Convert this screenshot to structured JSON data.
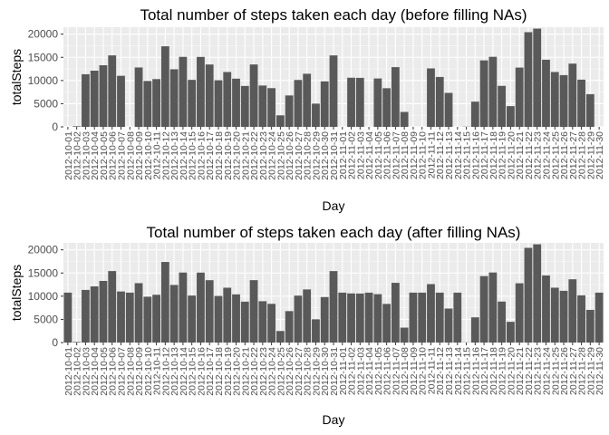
{
  "chart_data": [
    {
      "type": "bar",
      "title": "Total number of steps taken each day (before filling NAs)",
      "xlabel": "Day",
      "ylabel": "totalSteps",
      "ylim": [
        0,
        21500
      ],
      "yticks": [
        0,
        5000,
        10000,
        15000,
        20000
      ],
      "ytick_labels": [
        "0",
        "5000",
        "10000",
        "15000",
        "20000"
      ],
      "grid": true,
      "legend": "none",
      "bar_color": "#595959",
      "panel_color": "#ebebeb",
      "categories": [
        "2012-10-01",
        "2012-10-02",
        "2012-10-03",
        "2012-10-04",
        "2012-10-05",
        "2012-10-06",
        "2012-10-07",
        "2012-10-08",
        "2012-10-09",
        "2012-10-10",
        "2012-10-11",
        "2012-10-12",
        "2012-10-13",
        "2012-10-14",
        "2012-10-15",
        "2012-10-16",
        "2012-10-17",
        "2012-10-18",
        "2012-10-19",
        "2012-10-20",
        "2012-10-21",
        "2012-10-22",
        "2012-10-23",
        "2012-10-24",
        "2012-10-25",
        "2012-10-26",
        "2012-10-27",
        "2012-10-28",
        "2012-10-29",
        "2012-10-30",
        "2012-10-31",
        "2012-11-01",
        "2012-11-02",
        "2012-11-03",
        "2012-11-04",
        "2012-11-05",
        "2012-11-06",
        "2012-11-07",
        "2012-11-08",
        "2012-11-09",
        "2012-11-10",
        "2012-11-11",
        "2012-11-12",
        "2012-11-13",
        "2012-11-14",
        "2012-11-15",
        "2012-11-16",
        "2012-11-17",
        "2012-11-18",
        "2012-11-19",
        "2012-11-20",
        "2012-11-21",
        "2012-11-22",
        "2012-11-23",
        "2012-11-24",
        "2012-11-25",
        "2012-11-26",
        "2012-11-27",
        "2012-11-28",
        "2012-11-29",
        "2012-11-30"
      ],
      "values": [
        0,
        126,
        11352,
        12116,
        13294,
        15420,
        11015,
        0,
        12811,
        9900,
        10304,
        17382,
        12426,
        15098,
        10139,
        15084,
        13452,
        10056,
        11829,
        10395,
        8821,
        13460,
        8918,
        8355,
        2492,
        6778,
        10119,
        11458,
        5018,
        9819,
        15414,
        0,
        10600,
        10571,
        0,
        10439,
        8334,
        12883,
        3219,
        0,
        0,
        12608,
        10765,
        7336,
        0,
        41,
        5441,
        14339,
        15110,
        8841,
        4472,
        12787,
        20427,
        21194,
        14478,
        11834,
        11162,
        13646,
        10183,
        7047,
        0
      ]
    },
    {
      "type": "bar",
      "title": "Total number of steps taken each day (after filling NAs)",
      "xlabel": "Day",
      "ylabel": "totalSteps",
      "ylim": [
        0,
        21500
      ],
      "yticks": [
        0,
        5000,
        10000,
        15000,
        20000
      ],
      "ytick_labels": [
        "0",
        "5000",
        "10000",
        "15000",
        "20000"
      ],
      "grid": true,
      "legend": "none",
      "bar_color": "#595959",
      "panel_color": "#ebebeb",
      "categories": [
        "2012-10-01",
        "2012-10-02",
        "2012-10-03",
        "2012-10-04",
        "2012-10-05",
        "2012-10-06",
        "2012-10-07",
        "2012-10-08",
        "2012-10-09",
        "2012-10-10",
        "2012-10-11",
        "2012-10-12",
        "2012-10-13",
        "2012-10-14",
        "2012-10-15",
        "2012-10-16",
        "2012-10-17",
        "2012-10-18",
        "2012-10-19",
        "2012-10-20",
        "2012-10-21",
        "2012-10-22",
        "2012-10-23",
        "2012-10-24",
        "2012-10-25",
        "2012-10-26",
        "2012-10-27",
        "2012-10-28",
        "2012-10-29",
        "2012-10-30",
        "2012-10-31",
        "2012-11-01",
        "2012-11-02",
        "2012-11-03",
        "2012-11-04",
        "2012-11-05",
        "2012-11-06",
        "2012-11-07",
        "2012-11-08",
        "2012-11-09",
        "2012-11-10",
        "2012-11-11",
        "2012-11-12",
        "2012-11-13",
        "2012-11-14",
        "2012-11-15",
        "2012-11-16",
        "2012-11-17",
        "2012-11-18",
        "2012-11-19",
        "2012-11-20",
        "2012-11-21",
        "2012-11-22",
        "2012-11-23",
        "2012-11-24",
        "2012-11-25",
        "2012-11-26",
        "2012-11-27",
        "2012-11-28",
        "2012-11-29",
        "2012-11-30"
      ],
      "values": [
        10766,
        126,
        11352,
        12116,
        13294,
        15420,
        11015,
        10766,
        12811,
        9900,
        10304,
        17382,
        12426,
        15098,
        10139,
        15084,
        13452,
        10056,
        11829,
        10395,
        8821,
        13460,
        8918,
        8355,
        2492,
        6778,
        10119,
        11458,
        5018,
        9819,
        15414,
        10766,
        10600,
        10571,
        10766,
        10439,
        8334,
        12883,
        3219,
        10766,
        10766,
        12608,
        10765,
        7336,
        10766,
        41,
        5441,
        14339,
        15110,
        8841,
        4472,
        12787,
        20427,
        21194,
        14478,
        11834,
        11162,
        13646,
        10183,
        7047,
        10766
      ]
    }
  ]
}
